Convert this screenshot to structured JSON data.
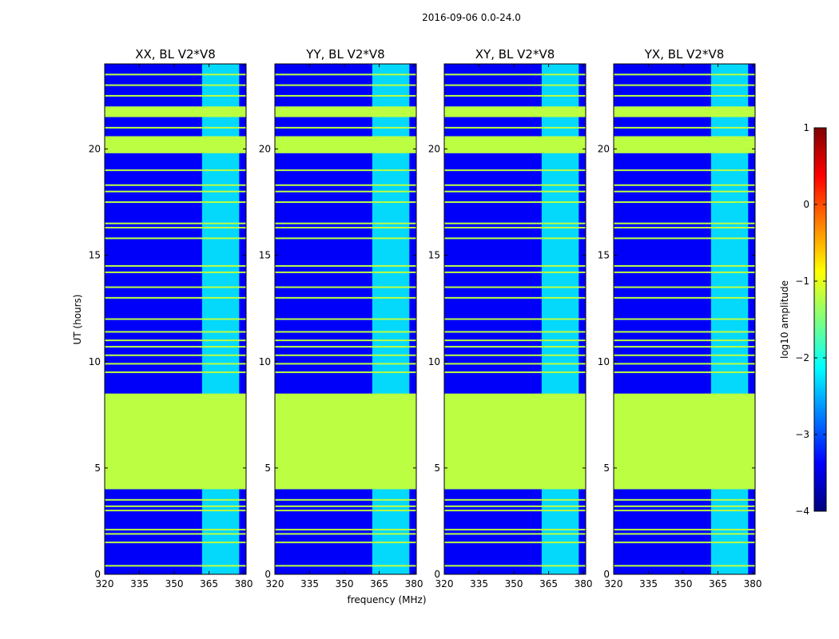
{
  "chart_data": {
    "type": "heatmap",
    "suptitle": "2016-09-06 0.0-24.0",
    "xlabel": "frequency (MHz)",
    "ylabel": "UT (hours)",
    "xlim": [
      320,
      381
    ],
    "ylim": [
      0,
      24
    ],
    "xticks": [
      "320",
      "335",
      "350",
      "365",
      "380"
    ],
    "xtick_values": [
      320,
      335,
      350,
      365,
      380
    ],
    "yticks": [
      "0",
      "5",
      "10",
      "15",
      "20"
    ],
    "ytick_values": [
      0,
      5,
      10,
      15,
      20
    ],
    "panels": [
      {
        "title": "XX, BL V2*V8"
      },
      {
        "title": "YY, BL V2*V8"
      },
      {
        "title": "XY, BL V2*V8"
      },
      {
        "title": "YX, BL V2*V8"
      }
    ],
    "colorbar": {
      "label": "log10 amplitude",
      "range": [
        -4,
        1
      ],
      "ticks": [
        "1",
        "0",
        "−1",
        "−2",
        "−3",
        "−4"
      ],
      "tick_values": [
        1,
        0,
        -1,
        -2,
        -3,
        -4
      ],
      "colormap": [
        "#00007f",
        "#0000ff",
        "#007fff",
        "#00ffff",
        "#7fff7f",
        "#ffff00",
        "#ff7f00",
        "#ff0000",
        "#7f0000"
      ]
    },
    "background_level": -3.4,
    "rfi_band_mhz": [
      362,
      378
    ],
    "rfi_band_level": -2.1,
    "flagged_level": -1.2,
    "flagged_ut_ranges": [
      [
        4.0,
        8.5
      ],
      [
        19.8,
        20.6
      ],
      [
        21.5,
        22.0
      ]
    ],
    "bright_line_ut": [
      0.4,
      1.5,
      1.9,
      2.1,
      3.0,
      3.2,
      3.5,
      9.5,
      9.9,
      10.3,
      10.7,
      11.0,
      11.4,
      12.0,
      13.0,
      13.5,
      14.2,
      14.5,
      15.8,
      16.3,
      16.5,
      17.5,
      18.0,
      18.3,
      19.0,
      21.0,
      22.5,
      23.0,
      23.5
    ]
  }
}
